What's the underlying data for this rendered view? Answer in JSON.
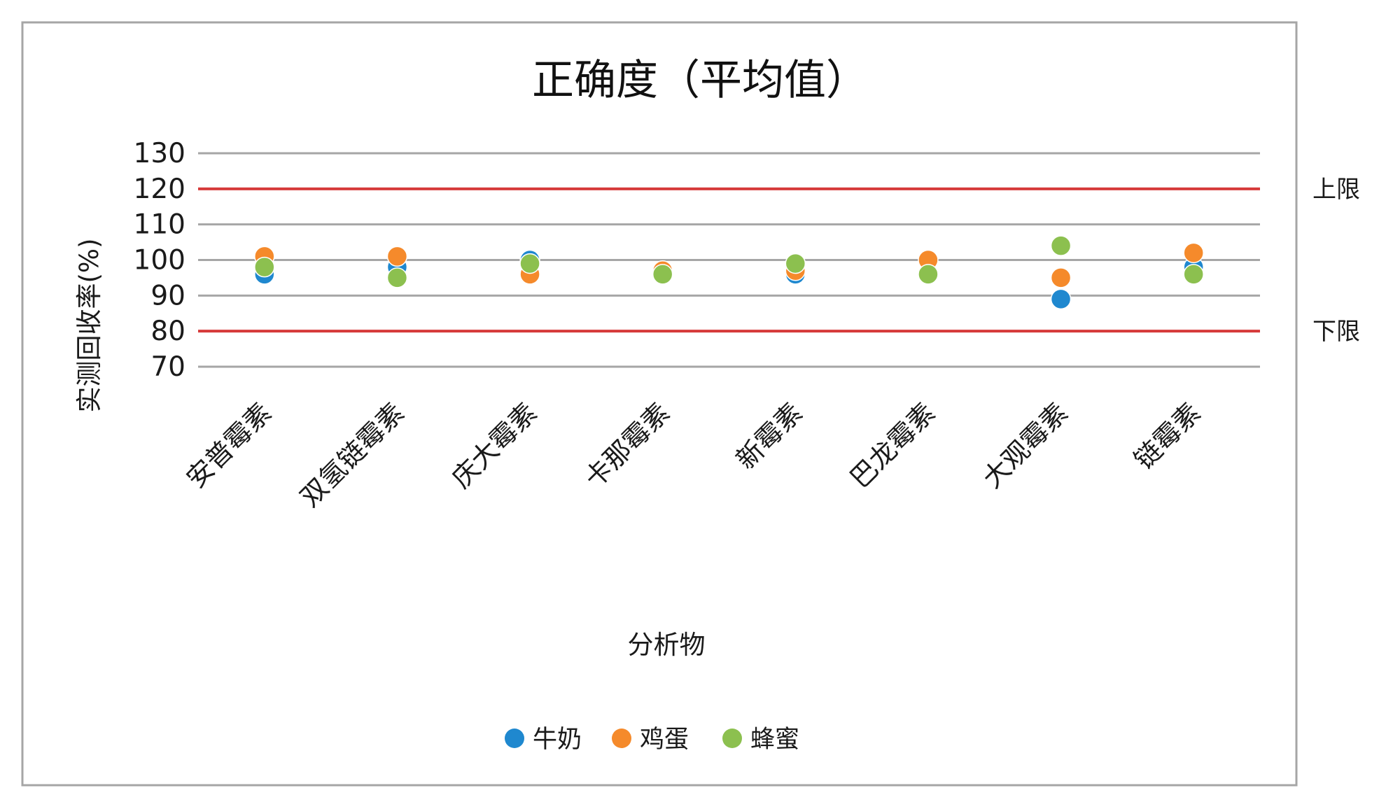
{
  "chart_data": {
    "type": "scatter",
    "title": "正确度（平均值）",
    "xlabel": "分析物",
    "ylabel": "实测回收率(%)",
    "ylim": [
      70,
      130
    ],
    "yticks": [
      "70",
      "80",
      "90",
      "100",
      "110",
      "120",
      "130"
    ],
    "categories": [
      "安普霉素",
      "双氢链霉素",
      "庆大霉素",
      "卡那霉素",
      "新霉素",
      "巴龙霉素",
      "大观霉素",
      "链霉素"
    ],
    "series": [
      {
        "name": "牛奶",
        "color": "#1f88cf",
        "values": [
          96,
          98,
          100,
          96,
          96,
          96,
          89,
          98
        ]
      },
      {
        "name": "鸡蛋",
        "color": "#f58a2b",
        "values": [
          101,
          101,
          96,
          97,
          97,
          100,
          95,
          102
        ]
      },
      {
        "name": "蜂蜜",
        "color": "#8cc04f",
        "values": [
          98,
          95,
          99,
          96,
          99,
          96,
          104,
          96
        ]
      }
    ],
    "reference_lines": [
      {
        "label": "上限",
        "value": 120,
        "color": "#d63a3a"
      },
      {
        "label": "下限",
        "value": 80,
        "color": "#d63a3a"
      }
    ],
    "grid": true,
    "legend_position": "bottom"
  }
}
